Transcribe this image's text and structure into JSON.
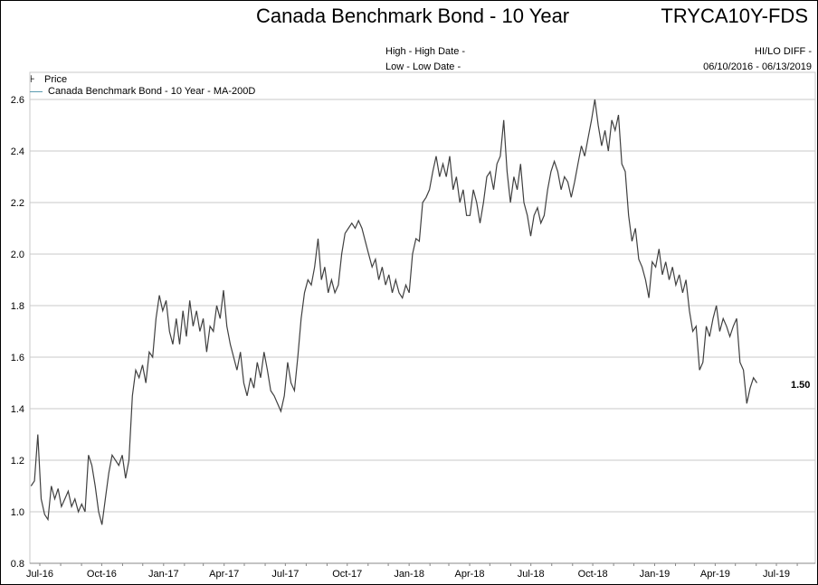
{
  "header": {
    "title": "Canada Benchmark Bond - 10 Year",
    "ticker": "TRYCA10Y-FDS",
    "high_label": "High - High Date -",
    "low_label": "Low - Low Date -",
    "hilo_label": "HI/LO DIFF -",
    "date_range": "06/10/2016 - 06/13/2019"
  },
  "legend": [
    {
      "label": "Price",
      "icon": "price-bar-icon"
    },
    {
      "label": "Canada Benchmark Bond - 10 Year - MA-200D",
      "icon": "line-icon",
      "color": "#5b9bb0"
    }
  ],
  "chart_data": {
    "type": "line",
    "title": "Canada Benchmark Bond - 10 Year",
    "xlabel": "",
    "ylabel": "",
    "ylim": [
      0.8,
      2.6
    ],
    "yticks": [
      "0.8",
      "1.0",
      "1.2",
      "1.4",
      "1.6",
      "1.8",
      "2.0",
      "2.2",
      "2.4",
      "2.6"
    ],
    "xticks": [
      "Jul-16",
      "Oct-16",
      "Jan-17",
      "Apr-17",
      "Jul-17",
      "Oct-17",
      "Jan-18",
      "Apr-18",
      "Jul-18",
      "Oct-18",
      "Jan-19",
      "Apr-19",
      "Jul-19"
    ],
    "x_start": "2016-06-18",
    "x_end": "2019-06-02",
    "last_value_label": "1.50",
    "line_color": "#404040",
    "series": [
      {
        "name": "Price",
        "values": [
          1.1,
          1.12,
          1.3,
          1.05,
          0.99,
          0.97,
          1.1,
          1.05,
          1.09,
          1.02,
          1.05,
          1.08,
          1.02,
          1.05,
          1.0,
          1.03,
          1.0,
          1.22,
          1.18,
          1.1,
          1.0,
          0.95,
          1.05,
          1.15,
          1.22,
          1.2,
          1.18,
          1.22,
          1.13,
          1.2,
          1.45,
          1.55,
          1.52,
          1.57,
          1.5,
          1.62,
          1.6,
          1.75,
          1.84,
          1.78,
          1.82,
          1.7,
          1.65,
          1.75,
          1.65,
          1.78,
          1.68,
          1.82,
          1.72,
          1.78,
          1.7,
          1.75,
          1.62,
          1.72,
          1.7,
          1.8,
          1.75,
          1.86,
          1.72,
          1.65,
          1.6,
          1.55,
          1.62,
          1.5,
          1.45,
          1.52,
          1.48,
          1.58,
          1.52,
          1.62,
          1.55,
          1.47,
          1.45,
          1.42,
          1.39,
          1.45,
          1.58,
          1.5,
          1.47,
          1.6,
          1.75,
          1.85,
          1.9,
          1.88,
          1.95,
          2.06,
          1.9,
          1.95,
          1.85,
          1.9,
          1.85,
          1.88,
          2.0,
          2.08,
          2.1,
          2.12,
          2.1,
          2.13,
          2.1,
          2.05,
          2.0,
          1.95,
          1.98,
          1.9,
          1.95,
          1.88,
          1.92,
          1.85,
          1.9,
          1.85,
          1.83,
          1.88,
          1.85,
          2.0,
          2.06,
          2.05,
          2.2,
          2.22,
          2.25,
          2.32,
          2.38,
          2.3,
          2.35,
          2.3,
          2.38,
          2.25,
          2.3,
          2.2,
          2.25,
          2.15,
          2.15,
          2.25,
          2.2,
          2.12,
          2.2,
          2.3,
          2.32,
          2.25,
          2.35,
          2.38,
          2.52,
          2.32,
          2.2,
          2.3,
          2.25,
          2.35,
          2.2,
          2.15,
          2.07,
          2.15,
          2.18,
          2.12,
          2.15,
          2.25,
          2.32,
          2.36,
          2.32,
          2.25,
          2.3,
          2.28,
          2.22,
          2.28,
          2.35,
          2.42,
          2.38,
          2.45,
          2.52,
          2.6,
          2.5,
          2.42,
          2.48,
          2.4,
          2.52,
          2.48,
          2.54,
          2.35,
          2.32,
          2.15,
          2.05,
          2.1,
          1.98,
          1.95,
          1.9,
          1.83,
          1.97,
          1.95,
          2.02,
          1.92,
          1.97,
          1.9,
          1.95,
          1.88,
          1.92,
          1.85,
          1.9,
          1.78,
          1.7,
          1.72,
          1.55,
          1.58,
          1.72,
          1.68,
          1.75,
          1.8,
          1.7,
          1.75,
          1.72,
          1.68,
          1.72,
          1.75,
          1.58,
          1.55,
          1.42,
          1.48,
          1.52,
          1.5
        ]
      }
    ]
  }
}
